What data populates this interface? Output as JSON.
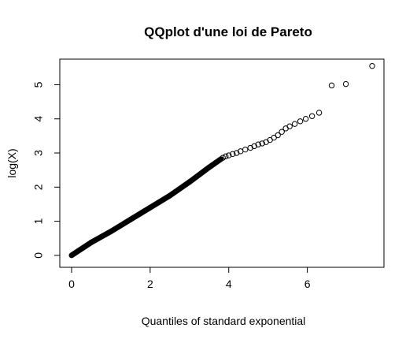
{
  "chart_data": {
    "type": "scatter",
    "title": "QQplot d'une loi de Pareto",
    "xlabel": "Quantiles of standard exponential",
    "ylabel": "log(X)",
    "xlim": [
      -0.3,
      7.95
    ],
    "ylim": [
      -0.35,
      5.75
    ],
    "xticks": [
      0,
      2,
      4,
      6
    ],
    "yticks": [
      0,
      1,
      2,
      3,
      4,
      5
    ],
    "grid": false,
    "legend": "none",
    "point_color": "#000000",
    "segments": [
      {
        "x0": 0.0,
        "y0": 0.0,
        "x1": 0.5,
        "y1": 0.38
      },
      {
        "x0": 0.5,
        "y0": 0.38,
        "x1": 1.0,
        "y1": 0.7
      },
      {
        "x0": 1.0,
        "y0": 0.7,
        "x1": 1.5,
        "y1": 1.05
      },
      {
        "x0": 1.5,
        "y0": 1.05,
        "x1": 2.0,
        "y1": 1.4
      },
      {
        "x0": 2.0,
        "y0": 1.4,
        "x1": 2.5,
        "y1": 1.75
      },
      {
        "x0": 2.5,
        "y0": 1.75,
        "x1": 3.0,
        "y1": 2.15
      },
      {
        "x0": 3.0,
        "y0": 2.15,
        "x1": 3.5,
        "y1": 2.58
      },
      {
        "x0": 3.5,
        "y0": 2.58,
        "x1": 3.8,
        "y1": 2.82
      }
    ],
    "points": [
      [
        3.85,
        2.86
      ],
      [
        3.92,
        2.9
      ],
      [
        4.0,
        2.93
      ],
      [
        4.1,
        2.97
      ],
      [
        4.2,
        3.0
      ],
      [
        4.3,
        3.05
      ],
      [
        4.42,
        3.1
      ],
      [
        4.55,
        3.15
      ],
      [
        4.65,
        3.2
      ],
      [
        4.75,
        3.25
      ],
      [
        4.85,
        3.28
      ],
      [
        4.95,
        3.32
      ],
      [
        5.05,
        3.38
      ],
      [
        5.15,
        3.45
      ],
      [
        5.25,
        3.52
      ],
      [
        5.35,
        3.62
      ],
      [
        5.45,
        3.72
      ],
      [
        5.55,
        3.78
      ],
      [
        5.68,
        3.85
      ],
      [
        5.82,
        3.93
      ],
      [
        5.96,
        4.0
      ],
      [
        6.12,
        4.08
      ],
      [
        6.3,
        4.18
      ],
      [
        6.62,
        4.98
      ],
      [
        6.98,
        5.02
      ],
      [
        7.65,
        5.55
      ]
    ]
  }
}
